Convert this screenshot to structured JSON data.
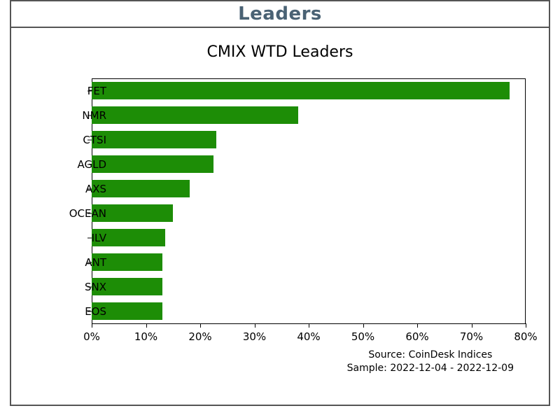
{
  "header": {
    "title": "Leaders"
  },
  "chart": {
    "type": "bar-horizontal",
    "title": "CMIX WTD Leaders",
    "title_fontsize": 22,
    "label_fontsize": 15,
    "background_color": "#ffffff",
    "bar_color": "#1d8d06",
    "border_color": "#555555",
    "header_text_color": "#4a6274",
    "x_min": 0,
    "x_max": 80,
    "x_tick_step": 10,
    "x_tick_suffix": "%",
    "categories": [
      "FET",
      "NMR",
      "CTSI",
      "AGLD",
      "AXS",
      "OCEAN",
      "ILV",
      "ANT",
      "SNX",
      "EOS"
    ],
    "values": [
      77,
      38,
      23,
      22.5,
      18,
      15,
      13.5,
      13,
      13,
      13
    ],
    "bar_height_ratio": 0.74,
    "source_line1": "Source: CoinDesk Indices",
    "source_line2": "Sample: 2022-12-04 - 2022-12-09"
  }
}
